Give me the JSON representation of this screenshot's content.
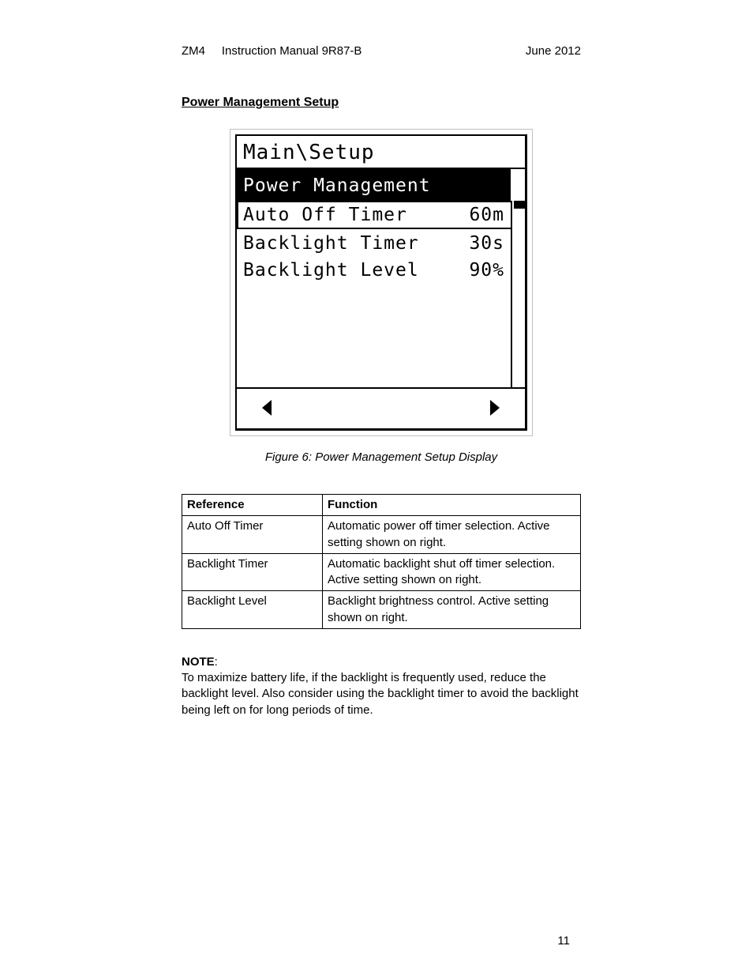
{
  "header": {
    "product": "ZM4",
    "doc": "Instruction Manual 9R87-B",
    "date": "June 2012"
  },
  "section_title": "Power Management Setup",
  "lcd": {
    "breadcrumb": "Main\\Setup",
    "section_header": "Power Management",
    "rows": [
      {
        "label": "Auto Off Timer",
        "value": "60m",
        "selected": true
      },
      {
        "label": "Backlight Timer",
        "value": "30s",
        "selected": false
      },
      {
        "label": "Backlight Level",
        "value": "90%",
        "selected": false
      }
    ],
    "nav_left_icon": "triangle-left-icon",
    "nav_right_icon": "triangle-right-icon",
    "colors": {
      "fg": "#000000",
      "bg": "#ffffff",
      "frame": "#bfbfbf"
    }
  },
  "figure_caption": "Figure 6: Power Management Setup Display",
  "table": {
    "headers": [
      "Reference",
      "Function"
    ],
    "rows": [
      [
        "Auto Off Timer",
        "Automatic power off timer selection. Active setting shown on right."
      ],
      [
        "Backlight Timer",
        "Automatic backlight shut off timer selection. Active setting shown on right."
      ],
      [
        "Backlight Level",
        "Backlight brightness control. Active setting shown on right."
      ]
    ]
  },
  "note": {
    "label": "NOTE",
    "text": "To maximize battery life, if the backlight is frequently used, reduce the backlight level. Also consider using the backlight timer to avoid the backlight being left on for long periods of time."
  },
  "page_number": "11"
}
